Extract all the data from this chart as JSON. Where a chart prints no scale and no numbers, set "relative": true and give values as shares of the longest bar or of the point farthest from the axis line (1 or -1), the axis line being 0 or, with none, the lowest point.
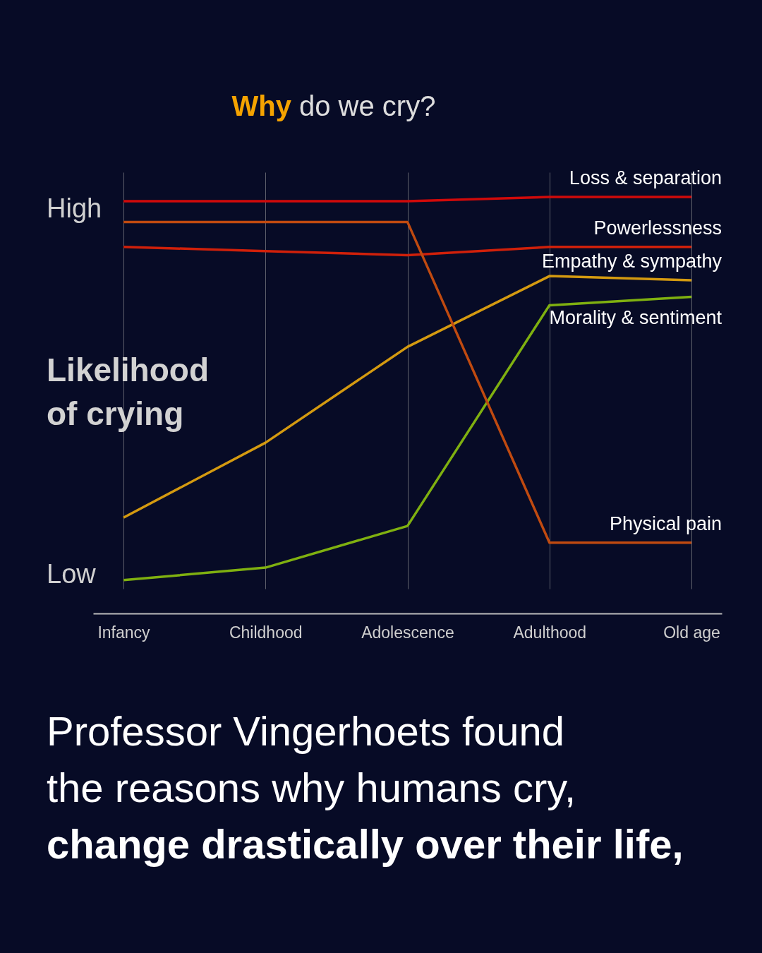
{
  "chart_data": {
    "type": "line",
    "title": "Why do we cry?",
    "ylabel": "Likelihood of crying",
    "relative": true,
    "categories": [
      "Infancy",
      "Childhood",
      "Adolescence",
      "Adulthood",
      "Old age"
    ],
    "series": [
      {
        "name": "Loss & separation",
        "color": "#d00a0a",
        "values": [
          0.99,
          0.99,
          0.99,
          1,
          1
        ]
      },
      {
        "name": "Powerlessness",
        "color": "#d0200a",
        "values": [
          0.88,
          0.87,
          0.86,
          0.88,
          0.88
        ]
      },
      {
        "name": "Empathy & sympathy",
        "color": "#d49a10",
        "values": [
          0.23,
          0.41,
          0.64,
          0.81,
          0.8
        ]
      },
      {
        "name": "Morality & sentiment",
        "color": "#7fb010",
        "values": [
          0.08,
          0.11,
          0.21,
          0.74,
          0.76
        ]
      },
      {
        "name": "Physical pain",
        "color": "#c04a10",
        "values": [
          0.94,
          0.94,
          0.94,
          0.17,
          0.17
        ]
      }
    ],
    "grid": "x",
    "marker": "none",
    "line_style": "solid",
    "annotations": [
      "High",
      "Low",
      "Professor Vingerhoets found",
      "the reasons why humans cry,",
      "change drastically over their life,"
    ]
  }
}
